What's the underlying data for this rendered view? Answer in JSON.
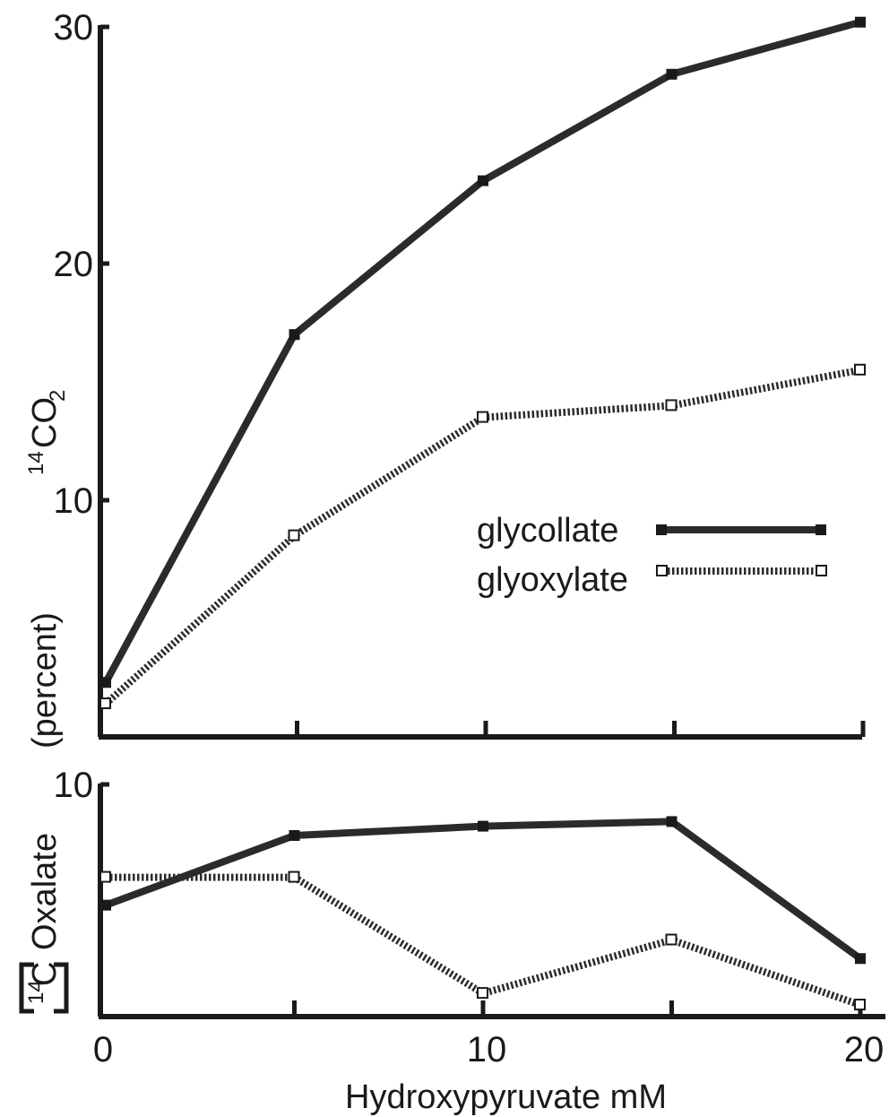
{
  "chart_data": [
    {
      "type": "line",
      "title": "",
      "ylabel_iso": "14",
      "ylabel_main": "CO",
      "ylabel_sub": "2",
      "ylabel_unit": "(percent)",
      "xlim": [
        0,
        20
      ],
      "ylim": [
        0,
        30
      ],
      "yticks": [
        10,
        20,
        30
      ],
      "grid": false,
      "legend_position": "center-right",
      "series": [
        {
          "name": "glycollate",
          "style": "solid",
          "marker": "filled-square",
          "color": "#2b2b2b",
          "x": [
            0,
            5,
            10,
            15,
            20
          ],
          "y": [
            2.3,
            17.0,
            23.5,
            28.0,
            30.2
          ]
        },
        {
          "name": "glyoxylate",
          "style": "dotted",
          "marker": "open-square",
          "color": "#2b2b2b",
          "x": [
            0,
            5,
            10,
            15,
            20
          ],
          "y": [
            1.4,
            8.5,
            13.5,
            14.0,
            15.5
          ]
        }
      ]
    },
    {
      "type": "line",
      "title": "",
      "ylabel_iso": "14",
      "ylabel_main": "C",
      "ylabel_text": "Oxalate",
      "xlabel": "Hydroxypyruvate mM",
      "xlim": [
        0,
        20
      ],
      "ylim": [
        0,
        10
      ],
      "yticks": [
        10
      ],
      "xticks": [
        0,
        10,
        20
      ],
      "grid": false,
      "series": [
        {
          "name": "glycollate",
          "style": "solid",
          "marker": "filled-square",
          "color": "#2b2b2b",
          "x": [
            0,
            5,
            10,
            15,
            20
          ],
          "y": [
            4.8,
            7.8,
            8.2,
            8.4,
            2.5
          ]
        },
        {
          "name": "glyoxylate",
          "style": "dotted",
          "marker": "open-square",
          "color": "#2b2b2b",
          "x": [
            0,
            5,
            10,
            15,
            20
          ],
          "y": [
            6.0,
            6.0,
            1.0,
            3.3,
            0.5
          ]
        }
      ]
    }
  ]
}
